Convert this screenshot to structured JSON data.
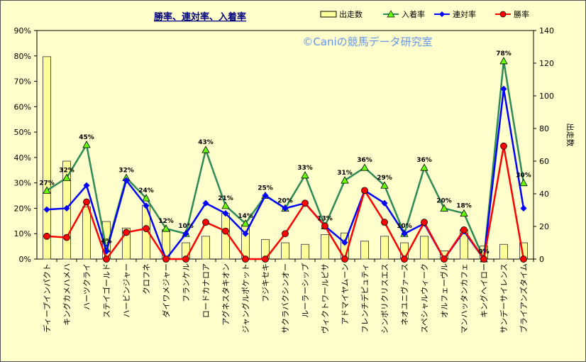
{
  "chart_data": {
    "type": "bar+line",
    "title": "勝率、連対率、入着率",
    "watermark": "©Caniの競馬データ研究室",
    "y_left": {
      "label": "",
      "ticks": [
        "0%",
        "10%",
        "20%",
        "30%",
        "40%",
        "50%",
        "60%",
        "70%",
        "80%",
        "90%"
      ],
      "range": [
        0,
        90
      ]
    },
    "y_right": {
      "label": "出走数",
      "ticks": [
        "0",
        "20",
        "40",
        "60",
        "80",
        "100",
        "120",
        "140"
      ],
      "range": [
        0,
        140
      ]
    },
    "legend": {
      "position": "top-right",
      "items": [
        "出走数",
        "入着率",
        "連対率",
        "勝率"
      ]
    },
    "colors": {
      "bar": "#ffff99",
      "bar_stroke": "#555555",
      "entry": "#2e8b57",
      "entry_marker": "#66ff00",
      "rentai": "#0000ff",
      "win": "#ff0000",
      "title": "#000080",
      "watermark": "#6495ed"
    },
    "categories": [
      "ディープインパクト",
      "キングカメハメハ",
      "ハーツクライ",
      "ステイゴールド",
      "ハービンジャー",
      "クロフネ",
      "ダイワメジャー",
      "フランケル",
      "ロードカナロア",
      "アグネスタキオン",
      "ジャングルポケット",
      "フジキセキ",
      "サクラバクシンオー",
      "ルーラーシップ",
      "ヴィクトワールピサ",
      "アドマイヤムーン",
      "フレンチデピュティ",
      "シンボリクリスエス",
      "ネオユニヴァース",
      "スペシャルウィーク",
      "オルフェーヴル",
      "マンハッタンカフェ",
      "キングヘイロー",
      "サンデーサイレンス",
      "ブライアンズタイム"
    ],
    "series": [
      {
        "name": "出走数",
        "axis": "right",
        "values": [
          124,
          60,
          32,
          23,
          19,
          33,
          18,
          10,
          14,
          28,
          21,
          12,
          10,
          9,
          15,
          16,
          11,
          14,
          10,
          14,
          5,
          18,
          8,
          9,
          10
        ]
      },
      {
        "name": "入着率",
        "axis": "left",
        "values": [
          27,
          32,
          45,
          4,
          32,
          24,
          12,
          10,
          43,
          21,
          14,
          25,
          20,
          33,
          13,
          31,
          36,
          29,
          10,
          36,
          20,
          18,
          0,
          78,
          30
        ],
        "labels": [
          "27%",
          "32%",
          "45%",
          "4%",
          "32%",
          "24%",
          "12%",
          "10%",
          "43%",
          "21%",
          "14%",
          "25%",
          "20%",
          "33%",
          "13%",
          "31%",
          "36%",
          "29%",
          "10%",
          "36%",
          "20%",
          "18%",
          "0%",
          "78%",
          "30%"
        ]
      },
      {
        "name": "連対率",
        "axis": "left",
        "values": [
          19.5,
          20,
          29,
          3,
          31,
          21,
          0,
          10,
          22,
          18,
          10,
          25,
          20,
          22,
          13,
          6.5,
          27,
          22,
          10,
          14,
          0,
          11,
          0,
          67,
          20
        ]
      },
      {
        "name": "勝率",
        "axis": "left",
        "values": [
          9,
          8.5,
          22.5,
          0,
          10.5,
          12,
          0,
          0,
          14.5,
          11,
          0,
          0,
          10,
          22,
          13,
          0,
          27,
          14.5,
          0,
          14.5,
          0,
          11.5,
          0,
          44.5,
          0
        ]
      }
    ]
  }
}
